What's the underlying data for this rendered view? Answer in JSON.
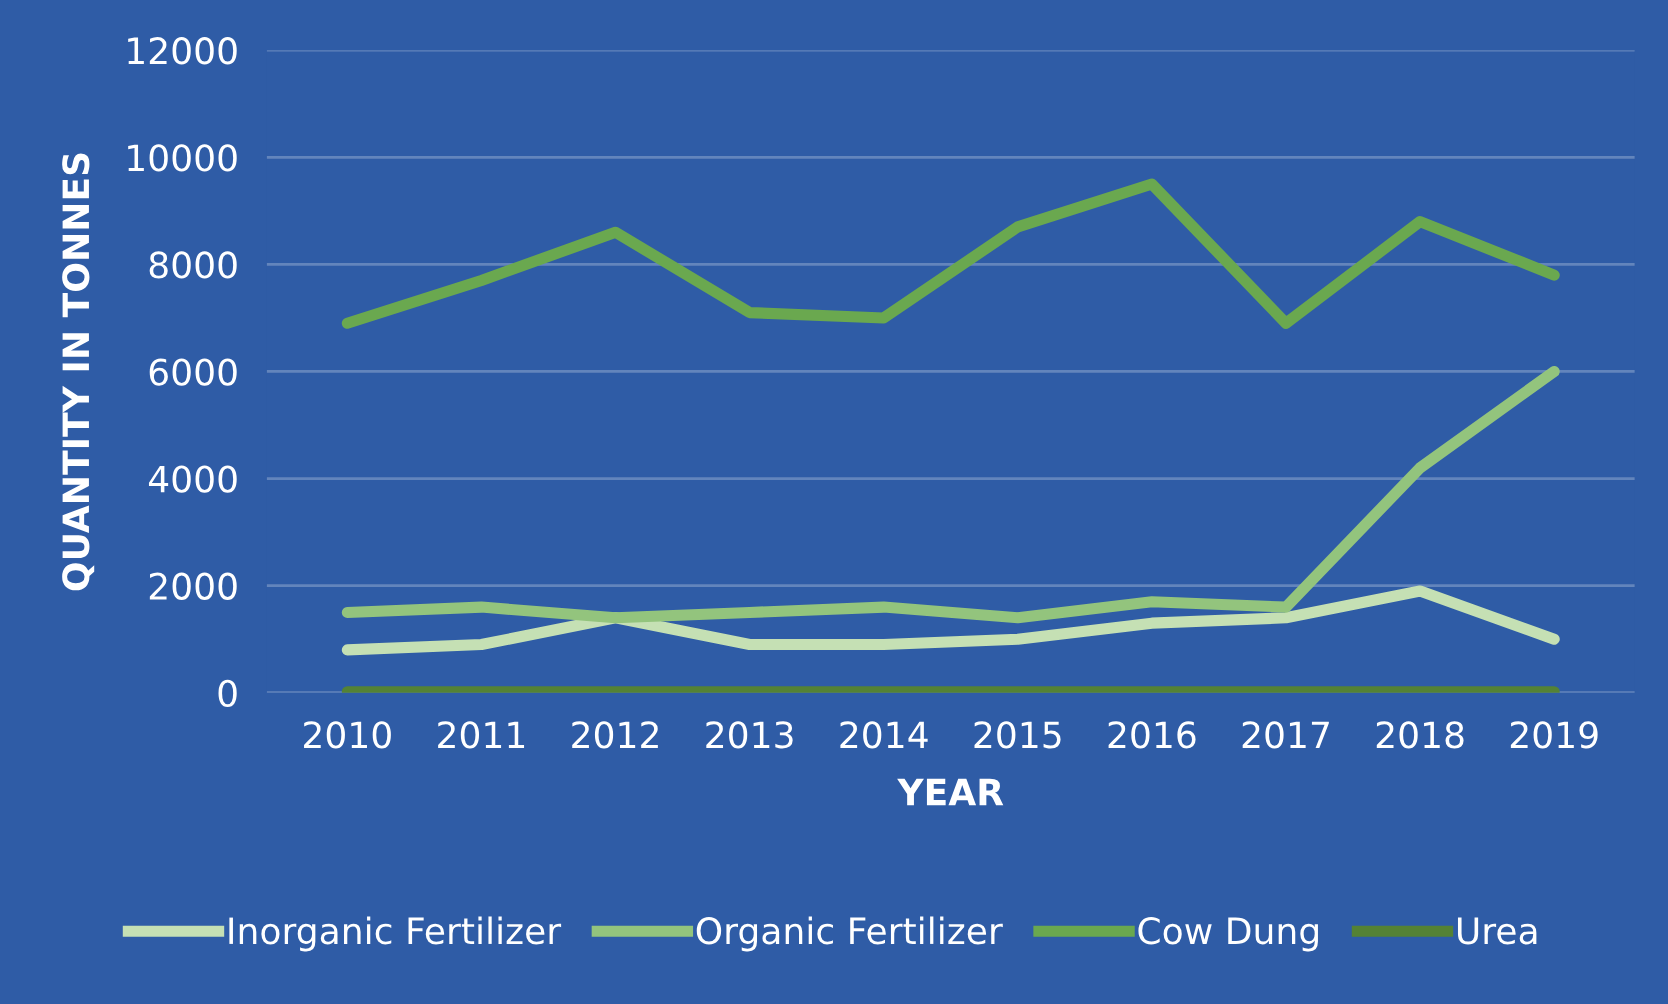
{
  "chart_data": {
    "type": "line",
    "xlabel": "YEAR",
    "ylabel": "QUANTITY IN TONNES",
    "categories": [
      "2010",
      "2011",
      "2012",
      "2013",
      "2014",
      "2015",
      "2016",
      "2017",
      "2018",
      "2019"
    ],
    "series": [
      {
        "name": "Inorganic Fertilizer",
        "color": "#c5e0b4",
        "values": [
          800,
          900,
          1400,
          900,
          900,
          1000,
          1300,
          1400,
          1900,
          1000
        ]
      },
      {
        "name": "Organic Fertilizer",
        "color": "#93c47d",
        "values": [
          1500,
          1600,
          1400,
          1500,
          1600,
          1400,
          1700,
          1600,
          4200,
          6000
        ]
      },
      {
        "name": "Cow Dung",
        "color": "#6aa84f",
        "values": [
          6900,
          7700,
          8600,
          7100,
          7000,
          8700,
          9500,
          6900,
          8800,
          7800
        ]
      },
      {
        "name": "Urea",
        "color": "#548235",
        "values": [
          20,
          20,
          20,
          20,
          20,
          20,
          20,
          20,
          20,
          20
        ]
      }
    ],
    "ylim": [
      0,
      12000
    ],
    "yticks": [
      0,
      2000,
      4000,
      6000,
      8000,
      10000,
      12000
    ],
    "grid": "y",
    "legend": "bottom",
    "marker": "none",
    "line_style": "solid"
  }
}
